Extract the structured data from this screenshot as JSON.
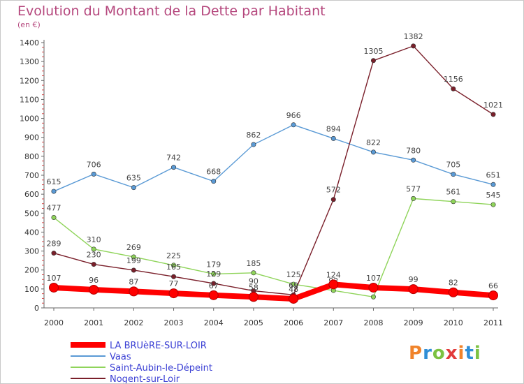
{
  "title": "Evolution du Montant de la Dette par Habitant",
  "subtitle": "(en €)",
  "logo": {
    "p": "P",
    "r": "r",
    "o": "o",
    "x": "x",
    "i1": "i",
    "t": "t",
    "i2": "i"
  },
  "chart_data": {
    "type": "line",
    "title": "Evolution du Montant de la Dette par Habitant",
    "subtitle": "(en €)",
    "xlabel": "",
    "ylabel": "",
    "x": [
      "2000",
      "2001",
      "2002",
      "2003",
      "2004",
      "2005",
      "2006",
      "2007",
      "2008",
      "2009",
      "2010",
      "2011"
    ],
    "ylim": [
      0,
      1400
    ],
    "yticks": [
      0,
      100,
      200,
      300,
      400,
      500,
      600,
      700,
      800,
      900,
      1000,
      1100,
      1200,
      1300,
      1400
    ],
    "grid": false,
    "legend_position": "bottom",
    "series": [
      {
        "name": "LA BRUèRE-SUR-LOIR",
        "color": "#ff0000",
        "values": [
          107,
          96,
          87,
          77,
          67,
          58,
          48,
          124,
          107,
          99,
          82,
          66
        ]
      },
      {
        "name": "Vaas",
        "color": "#5a9ad5",
        "values": [
          615,
          706,
          635,
          742,
          668,
          862,
          966,
          894,
          822,
          780,
          705,
          651
        ]
      },
      {
        "name": "Saint-Aubin-le-Dépeint",
        "color": "#8fd45a",
        "values": [
          477,
          310,
          269,
          225,
          179,
          185,
          125,
          92,
          58,
          577,
          561,
          545
        ]
      },
      {
        "name": "Nogent-sur-Loir",
        "color": "#7a1f2a",
        "values": [
          289,
          230,
          199,
          165,
          129,
          90,
          69,
          572,
          1305,
          1382,
          1156,
          1021
        ]
      }
    ]
  }
}
